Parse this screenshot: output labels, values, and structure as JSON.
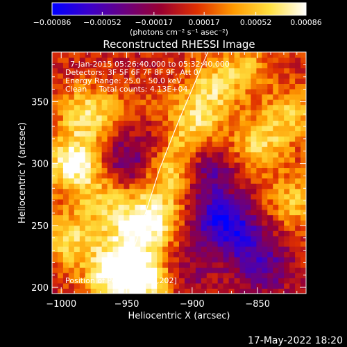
{
  "chart_data": {
    "type": "heatmap",
    "title": "Reconstructed RHESSI Image",
    "xlabel": "Heliocentric X (arcsec)",
    "ylabel": "Heliocentric Y (arcsec)",
    "xlim": [
      -1007,
      -813
    ],
    "ylim": [
      195,
      390
    ],
    "x_ticks": [
      -1000,
      -950,
      -900,
      -850
    ],
    "x_tick_labels": [
      "−1000",
      "−950",
      "−900",
      "−850"
    ],
    "y_ticks": [
      200,
      250,
      300,
      350
    ],
    "y_tick_labels": [
      "200",
      "250",
      "300",
      "350"
    ],
    "colorbar": {
      "range": [
        -0.00086,
        0.00086
      ],
      "ticks": [
        -0.00086,
        -0.00052,
        -0.00017,
        0.00017,
        0.00052,
        0.00086
      ],
      "tick_labels": [
        "−0.00086",
        "−0.00052",
        "−0.00017",
        "0.00017",
        "0.00052",
        "0.00086"
      ],
      "unit_label": "(photons cm⁻² s⁻¹ asec⁻²)",
      "colors": [
        "#0000ff",
        "#3a00cc",
        "#6a0080",
        "#9a0030",
        "#e03000",
        "#ff9a00",
        "#ffe040",
        "#ffffff"
      ]
    },
    "annotations": {
      "time_range": "7-Jan-2015 05:26:40.000 to 05:32:40.000",
      "detectors": "Detectors: 3F 5F 6F 7F 8F 9F, Att 0",
      "energy_range": "Energy Range: 25.0 - 50.0 keV",
      "clean": "Clean     Total counts: 4.13E+04",
      "peak_position": "Position of Peak = [-955,202]"
    },
    "limb_curve": [
      [
        -953,
        195
      ],
      [
        -945,
        230
      ],
      [
        -935,
        262
      ],
      [
        -925,
        295
      ],
      [
        -912,
        330
      ],
      [
        -898,
        365
      ],
      [
        -888,
        390
      ]
    ],
    "features": [
      {
        "x": -990,
        "y": 300,
        "level": 0.9
      },
      {
        "x": -980,
        "y": 340,
        "level": 0.65
      },
      {
        "x": -965,
        "y": 270,
        "level": 0.5
      },
      {
        "x": -995,
        "y": 240,
        "level": 0.6
      },
      {
        "x": -960,
        "y": 212,
        "level": 0.85
      },
      {
        "x": -935,
        "y": 205,
        "level": 0.8
      },
      {
        "x": -945,
        "y": 240,
        "level": 0.55
      },
      {
        "x": -930,
        "y": 258,
        "level": 0.72
      },
      {
        "x": -915,
        "y": 295,
        "level": 0.62
      },
      {
        "x": -900,
        "y": 330,
        "level": 0.58
      },
      {
        "x": -885,
        "y": 360,
        "level": 0.55
      },
      {
        "x": -850,
        "y": 315,
        "level": 0.55
      },
      {
        "x": -822,
        "y": 270,
        "level": 0.5
      },
      {
        "x": -825,
        "y": 340,
        "level": 0.52
      },
      {
        "x": -860,
        "y": 380,
        "level": 0.4
      },
      {
        "x": -940,
        "y": 340,
        "level": 0.35
      },
      {
        "x": -950,
        "y": 300,
        "level": -0.5
      },
      {
        "x": -935,
        "y": 330,
        "level": -0.35
      },
      {
        "x": -880,
        "y": 255,
        "level": -0.7
      },
      {
        "x": -888,
        "y": 295,
        "level": -0.55
      },
      {
        "x": -860,
        "y": 240,
        "level": -0.5
      },
      {
        "x": -845,
        "y": 215,
        "level": -0.45
      },
      {
        "x": -905,
        "y": 210,
        "level": -0.3
      }
    ]
  },
  "footer": {
    "datestamp": "17-May-2022 18:20"
  }
}
